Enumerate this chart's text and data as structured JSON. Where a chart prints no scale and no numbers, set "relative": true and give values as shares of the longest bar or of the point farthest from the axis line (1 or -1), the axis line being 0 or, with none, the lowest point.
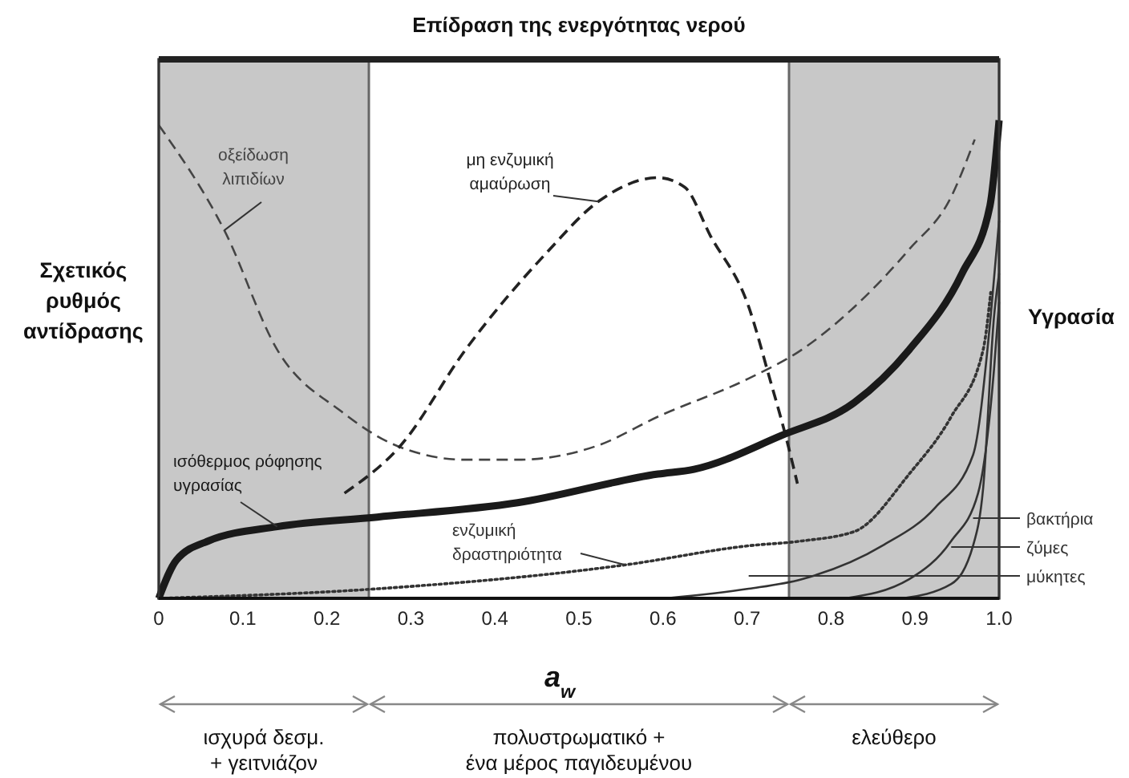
{
  "chart_data": {
    "type": "line",
    "relative": true,
    "title": "Επίδραση της ενεργότητας νερού",
    "xlabel": "a$_{w}$",
    "ylabel": "Σχετικός\nρυθμός\nαντίδρασης",
    "y2label": "Υγρασία",
    "xlim": [
      0,
      1
    ],
    "xticks": [
      0,
      0.1,
      0.2,
      0.3,
      0.4,
      0.5,
      0.6,
      0.7,
      0.8,
      0.9,
      {
        "value": 1,
        "label": "1.0"
      }
    ],
    "bands": [
      {
        "axis": "x",
        "from": 0,
        "to": 0.25,
        "color": "#c8c8c8"
      },
      {
        "axis": "x",
        "from": 0.75,
        "to": 1,
        "color": "#c8c8c8"
      }
    ],
    "annotations": [
      "ισχυρά δεσμ.\n+ γειτνιάζον",
      "πολυστρωματικό +\nένα μέρος  παγιδευμένου",
      "ελεύθερο"
    ],
    "legend": "right",
    "grid": false,
    "series": [
      {
        "name": "οξείδωση\nλιπιδίων",
        "color": "#444444",
        "line_style": "dashed",
        "x": [
          0,
          0.078,
          0.141,
          0.218,
          0.282,
          0.365,
          0.427,
          0.523,
          0.594,
          0.702,
          0.765,
          0.828,
          0.893,
          0.943,
          0.971
        ],
        "values": [
          0.99,
          0.77,
          0.52,
          0.39,
          0.32,
          0.29,
          0.29,
          0.32,
          0.38,
          0.46,
          0.52,
          0.61,
          0.73,
          0.84,
          0.96
        ]
      },
      {
        "name": "μη ενζυμική\nαμαύρωση",
        "color": "#222222",
        "line_style": "dashed",
        "x": [
          0.221,
          0.288,
          0.365,
          0.46,
          0.523,
          0.594,
          0.626,
          0.656,
          0.702,
          0.727,
          0.746,
          0.76
        ],
        "values": [
          0.22,
          0.32,
          0.52,
          0.72,
          0.83,
          0.88,
          0.86,
          0.76,
          0.61,
          0.46,
          0.34,
          0.24
        ]
      },
      {
        "name": "ισόθερμος ρόφησης\nυγρασίας",
        "color": "#1a1a1a",
        "line_style": "solid",
        "x": [
          0,
          0.021,
          0.059,
          0.141,
          0.26,
          0.427,
          0.594,
          0.637,
          0.74,
          0.828,
          0.893,
          0.956,
          0.989,
          1
        ],
        "values": [
          0,
          0.08,
          0.12,
          0.15,
          0.17,
          0.2,
          0.26,
          0.27,
          0.34,
          0.41,
          0.52,
          0.68,
          0.82,
          1
        ]
      },
      {
        "name": "ενζυμική\nδραστηριότητα",
        "color": "#333333",
        "line_style": "dotted",
        "x": [
          0,
          0.26,
          0.555,
          0.702,
          0.765,
          0.828,
          0.893,
          0.943,
          0.981,
          0.99
        ],
        "values": [
          0,
          0.02,
          0.07,
          0.11,
          0.12,
          0.14,
          0.26,
          0.38,
          0.52,
          0.64
        ]
      },
      {
        "name": "βακτήρια",
        "color": "#333333",
        "line_style": "solid",
        "x": [
          0.885,
          0.943,
          0.969,
          0.981,
          0.994,
          1
        ],
        "values": [
          0,
          0.03,
          0.11,
          0.23,
          0.59,
          0.68
        ]
      },
      {
        "name": "ζύμες",
        "color": "#333333",
        "line_style": "solid",
        "x": [
          0.817,
          0.893,
          0.943,
          0.975,
          0.994,
          1
        ],
        "values": [
          0,
          0.04,
          0.12,
          0.22,
          0.48,
          0.62
        ]
      },
      {
        "name": "μύκητες",
        "color": "#333333",
        "line_style": "solid",
        "x": [
          0.603,
          0.702,
          0.765,
          0.861,
          0.924,
          0.969,
          0.99,
          1
        ],
        "values": [
          0,
          0.02,
          0.04,
          0.11,
          0.19,
          0.3,
          0.59,
          0.79
        ]
      }
    ]
  }
}
